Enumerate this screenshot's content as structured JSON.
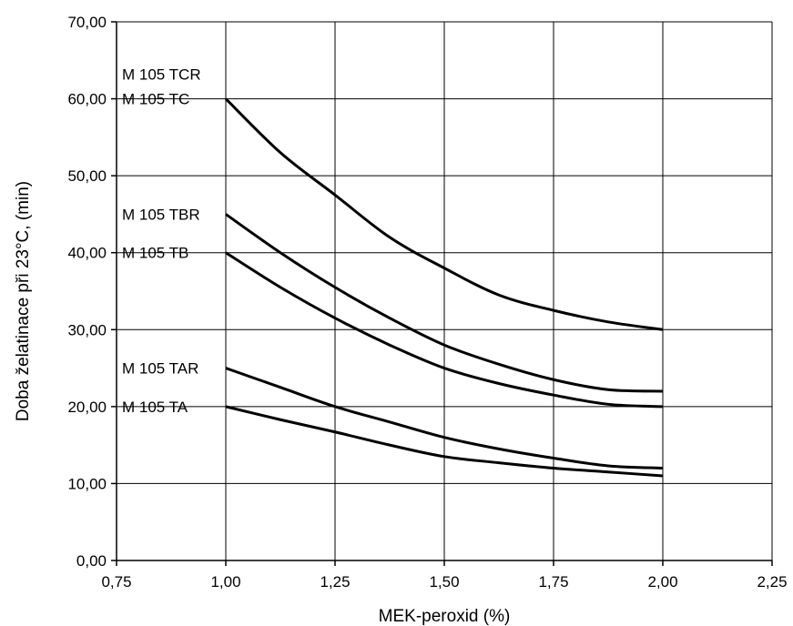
{
  "chart_data": {
    "type": "line",
    "xlabel": "MEK-peroxid (%)",
    "ylabel": "Doba želatinace při  23°C, (min)",
    "xlim": [
      0.75,
      2.25
    ],
    "ylim": [
      0,
      70
    ],
    "x_ticks": [
      "0,75",
      "1,00",
      "1,25",
      "1,50",
      "1,75",
      "2,00",
      "2,25"
    ],
    "y_ticks": [
      "0,00",
      "10,00",
      "20,00",
      "30,00",
      "40,00",
      "50,00",
      "60,00",
      "70,00"
    ],
    "grid": true,
    "series": [
      {
        "name": "M 105 TC",
        "label_lines": [
          "M 105 TCR",
          "M 105 TC"
        ],
        "x": [
          1.0,
          1.125,
          1.25,
          1.375,
          1.5,
          1.625,
          1.75,
          1.875,
          2.0
        ],
        "y": [
          60,
          53,
          47.5,
          42,
          38,
          34.5,
          32.5,
          31,
          30
        ]
      },
      {
        "name": "M 105 TBR",
        "label_lines": [
          "M 105 TBR"
        ],
        "x": [
          1.0,
          1.125,
          1.25,
          1.375,
          1.5,
          1.625,
          1.75,
          1.875,
          2.0
        ],
        "y": [
          45,
          40,
          35.5,
          31.5,
          28,
          25.5,
          23.5,
          22.2,
          22
        ]
      },
      {
        "name": "M 105 TB",
        "label_lines": [
          "M 105 TB"
        ],
        "x": [
          1.0,
          1.125,
          1.25,
          1.375,
          1.5,
          1.625,
          1.75,
          1.875,
          2.0
        ],
        "y": [
          40,
          35.5,
          31.5,
          28,
          25,
          23,
          21.5,
          20.3,
          20
        ]
      },
      {
        "name": "M 105 TAR",
        "label_lines": [
          "M 105 TAR"
        ],
        "x": [
          1.0,
          1.125,
          1.25,
          1.375,
          1.5,
          1.625,
          1.75,
          1.875,
          2.0
        ],
        "y": [
          25,
          22.5,
          20,
          18,
          16,
          14.5,
          13.3,
          12.3,
          12
        ]
      },
      {
        "name": "M 105 TA",
        "label_lines": [
          "M 105 TA"
        ],
        "x": [
          1.0,
          1.125,
          1.25,
          1.375,
          1.5,
          1.625,
          1.75,
          1.875,
          2.0
        ],
        "y": [
          20,
          18.3,
          16.7,
          15,
          13.5,
          12.7,
          12,
          11.5,
          11
        ]
      }
    ]
  }
}
